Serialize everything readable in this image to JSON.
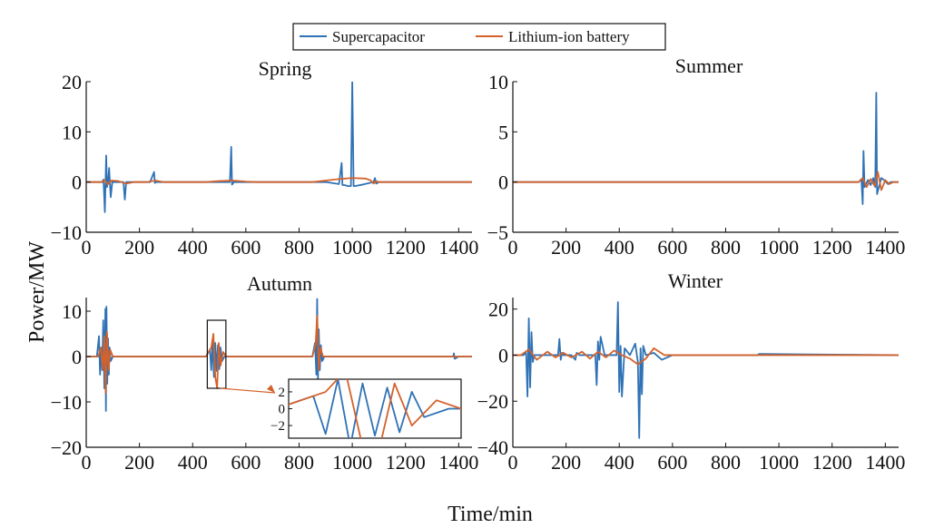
{
  "chart_data": {
    "type": "line",
    "xlabel": "Time/min",
    "ylabel": "Power/MW",
    "legend": {
      "placement": "top-center",
      "entries": [
        {
          "name": "Supercapacitor",
          "color": "#2f72b5"
        },
        {
          "name": "Lithium-ion battery",
          "color": "#d4622b"
        }
      ]
    },
    "grid": false,
    "subplots": [
      {
        "title": "Spring",
        "xlim": [
          0,
          1450
        ],
        "ylim": [
          -10,
          20
        ],
        "xticks": [
          0,
          200,
          400,
          600,
          800,
          1000,
          1200,
          1400
        ],
        "yticks": [
          -10,
          0,
          10,
          20
        ],
        "series": [
          {
            "name": "Supercapacitor",
            "x": [
              0,
              60,
              65,
              70,
              75,
              78,
              82,
              86,
              92,
              98,
              110,
              125,
              140,
              145,
              150,
              160,
              240,
              255,
              258,
              262,
              280,
              500,
              540,
              545,
              548,
              555,
              580,
              900,
              950,
              960,
              963,
              970,
              985,
              995,
              1000,
              1005,
              1010,
              1040,
              1080,
              1085,
              1090,
              1100,
              1450
            ],
            "y": [
              0,
              0,
              0.5,
              -6,
              5.3,
              -1,
              0,
              2.8,
              -3,
              0,
              0,
              0,
              0,
              -3.5,
              0,
              0,
              0,
              2,
              -0.2,
              0,
              0,
              0,
              0,
              7,
              -0.5,
              0,
              0,
              0,
              -0.4,
              3.8,
              -0.6,
              -0.6,
              -0.8,
              -0.8,
              20,
              -0.8,
              -0.8,
              -0.5,
              0,
              0.8,
              -0.3,
              0,
              0
            ]
          },
          {
            "name": "Lithium-ion battery",
            "x": [
              0,
              60,
              70,
              80,
              95,
              120,
              150,
              180,
              230,
              260,
              290,
              320,
              450,
              500,
              550,
              600,
              640,
              850,
              900,
              950,
              1000,
              1050,
              1070,
              1080,
              1090,
              1100,
              1450
            ],
            "y": [
              0,
              0,
              0.4,
              -0.5,
              0.3,
              0.2,
              -0.3,
              0,
              0,
              0.3,
              0,
              0,
              0,
              0.2,
              0.3,
              0.1,
              0,
              0,
              0.3,
              0.6,
              0.8,
              0.7,
              0.3,
              -0.3,
              0.2,
              0,
              0
            ]
          }
        ]
      },
      {
        "title": "Summer",
        "xlim": [
          0,
          1450
        ],
        "ylim": [
          -5,
          10
        ],
        "xticks": [
          0,
          200,
          400,
          600,
          800,
          1000,
          1200,
          1400
        ],
        "yticks": [
          -5,
          0,
          5,
          10
        ],
        "series": [
          {
            "name": "Supercapacitor",
            "x": [
              0,
              1300,
              1310,
              1315,
              1318,
              1322,
              1335,
              1345,
              1355,
              1362,
              1366,
              1369,
              1375,
              1385,
              1395,
              1410,
              1420,
              1450
            ],
            "y": [
              0,
              0,
              0.3,
              -2.2,
              3.1,
              -0.5,
              0.2,
              -0.3,
              0.4,
              -0.5,
              8.9,
              -1.2,
              -0.6,
              0.4,
              0.2,
              -0.2,
              0,
              0
            ]
          },
          {
            "name": "Lithium-ion battery",
            "x": [
              0,
              1300,
              1315,
              1330,
              1345,
              1360,
              1372,
              1385,
              1400,
              1415,
              1430,
              1450
            ],
            "y": [
              0,
              0,
              0.4,
              -0.5,
              0.3,
              -0.4,
              1,
              -0.8,
              0.2,
              -0.2,
              0,
              0
            ]
          }
        ]
      },
      {
        "title": "Autumn",
        "xlim": [
          0,
          1450
        ],
        "ylim": [
          -20,
          13
        ],
        "xticks": [
          0,
          200,
          400,
          600,
          800,
          1000,
          1200,
          1400
        ],
        "yticks": [
          -20,
          -10,
          0,
          10
        ],
        "series": [
          {
            "name": "Supercapacitor",
            "x": [
              0,
              40,
              48,
              52,
              56,
              60,
              64,
              68,
              72,
              74,
              76,
              79,
              82,
              85,
              88,
              92,
              100,
              450,
              465,
              470,
              475,
              480,
              485,
              490,
              495,
              500,
              505,
              510,
              520,
              850,
              860,
              865,
              868,
              871,
              874,
              878,
              882,
              887,
              895,
              1380,
              1382,
              1385,
              1400,
              1450
            ],
            "y": [
              0,
              0,
              4.5,
              -4,
              2,
              -3,
              8,
              -7,
              10.5,
              -12,
              11,
              -6,
              4,
              -4,
              2,
              -1,
              0,
              0,
              1.5,
              -3,
              3.5,
              -4.5,
              3,
              -3.2,
              2.5,
              -2.8,
              2,
              -1,
              0,
              0,
              3,
              -4,
              12.7,
              -5,
              6,
              -3,
              2.5,
              -1,
              0,
              0,
              0.7,
              -0.5,
              0,
              0
            ]
          },
          {
            "name": "Lithium-ion battery",
            "x": [
              0,
              45,
              55,
              62,
              68,
              73,
              78,
              84,
              90,
              100,
              450,
              470,
              478,
              485,
              492,
              498,
              505,
              515,
              525,
              850,
              862,
              868,
              874,
              880,
              890,
              1450
            ],
            "y": [
              0,
              0,
              2,
              -3,
              4.5,
              -8,
              5.5,
              -3,
              1.5,
              0,
              0,
              2,
              5,
              -4.5,
              -7,
              3,
              -2,
              1,
              0,
              0,
              2.5,
              9,
              -3,
              2,
              0,
              0
            ]
          }
        ]
      },
      {
        "title": "Winter",
        "xlim": [
          0,
          1450
        ],
        "ylim": [
          -40,
          25
        ],
        "xticks": [
          0,
          200,
          400,
          600,
          800,
          1000,
          1200,
          1400
        ],
        "yticks": [
          -40,
          -20,
          0,
          20
        ],
        "series": [
          {
            "name": "Supercapacitor",
            "x": [
              0,
              40,
              50,
              55,
              60,
              65,
              70,
              75,
              80,
              100,
              170,
              175,
              180,
              185,
              190,
              220,
              235,
              240,
              250,
              310,
              315,
              320,
              325,
              330,
              345,
              390,
              395,
              400,
              405,
              410,
              420,
              440,
              460,
              470,
              475,
              480,
              485,
              490,
              500,
              530,
              560,
              600,
              920,
              925,
              1450
            ],
            "y": [
              0,
              0,
              1,
              -18,
              16,
              -14,
              10,
              -3,
              0,
              0,
              0,
              7,
              -2,
              1,
              0,
              0,
              -2,
              1,
              0,
              0,
              -13,
              6,
              -2,
              8,
              0,
              0,
              23,
              -16,
              4,
              -18,
              3,
              0,
              5,
              -3,
              -36,
              3,
              -17,
              4,
              0,
              1,
              -2,
              0,
              0,
              0.5,
              0
            ]
          },
          {
            "name": "Lithium-ion battery",
            "x": [
              0,
              30,
              60,
              90,
              130,
              160,
              190,
              220,
              260,
              290,
              320,
              350,
              380,
              410,
              440,
              470,
              500,
              530,
              570,
              600,
              1450
            ],
            "y": [
              0,
              0,
              2.5,
              -2,
              1.5,
              -1,
              1,
              -1,
              1.5,
              -1.5,
              1.5,
              -1,
              2,
              0,
              -1.5,
              -4,
              -1.5,
              3,
              0,
              0,
              0
            ]
          }
        ]
      }
    ],
    "inset": {
      "xlim": [
        455,
        525
      ],
      "ylim": [
        -3.5,
        3.5
      ],
      "yticks": [
        -2,
        0,
        2
      ]
    }
  }
}
